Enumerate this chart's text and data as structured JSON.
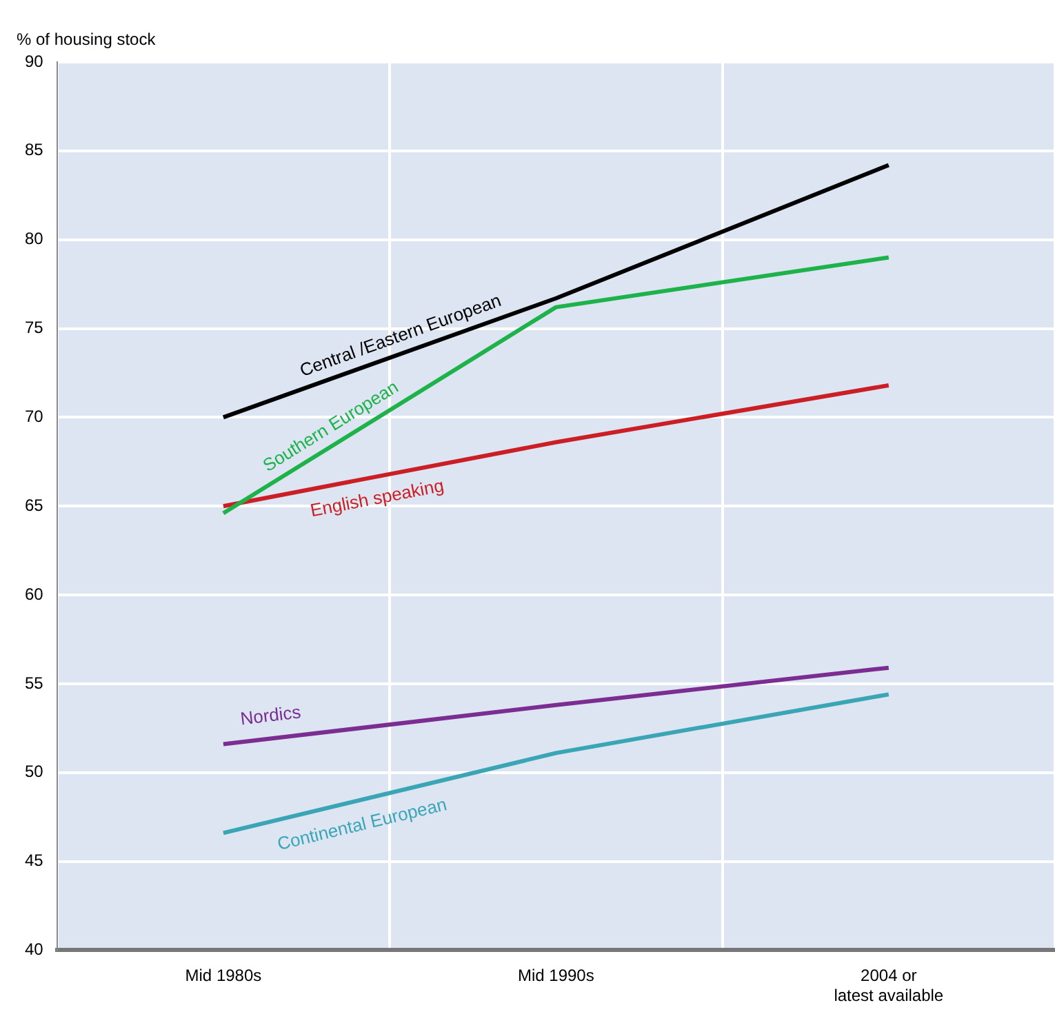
{
  "chart_data": {
    "type": "line",
    "ylabel": "% of housing stock",
    "categories": [
      "Mid 1980s",
      "Mid 1990s",
      "2004 or\nlatest available"
    ],
    "series": [
      {
        "name": "Central /Eastern European",
        "color": "#000000",
        "values": [
          70.0,
          76.7,
          84.2
        ]
      },
      {
        "name": "Southern European",
        "color": "#1db34a",
        "values": [
          64.6,
          76.2,
          79.0
        ]
      },
      {
        "name": "English speaking",
        "color": "#cc1f25",
        "values": [
          65.0,
          68.6,
          71.8
        ]
      },
      {
        "name": "Nordics",
        "color": "#7b2d91",
        "values": [
          51.6,
          53.8,
          55.9
        ]
      },
      {
        "name": "Continental European",
        "color": "#3aa6b5",
        "values": [
          46.6,
          51.1,
          54.4
        ]
      }
    ],
    "ylim": [
      40,
      90
    ],
    "yticks": [
      40,
      45,
      50,
      55,
      60,
      65,
      70,
      75,
      80,
      85,
      90
    ],
    "grid": true,
    "legend": false,
    "marker": "none",
    "line_style": "solid"
  }
}
